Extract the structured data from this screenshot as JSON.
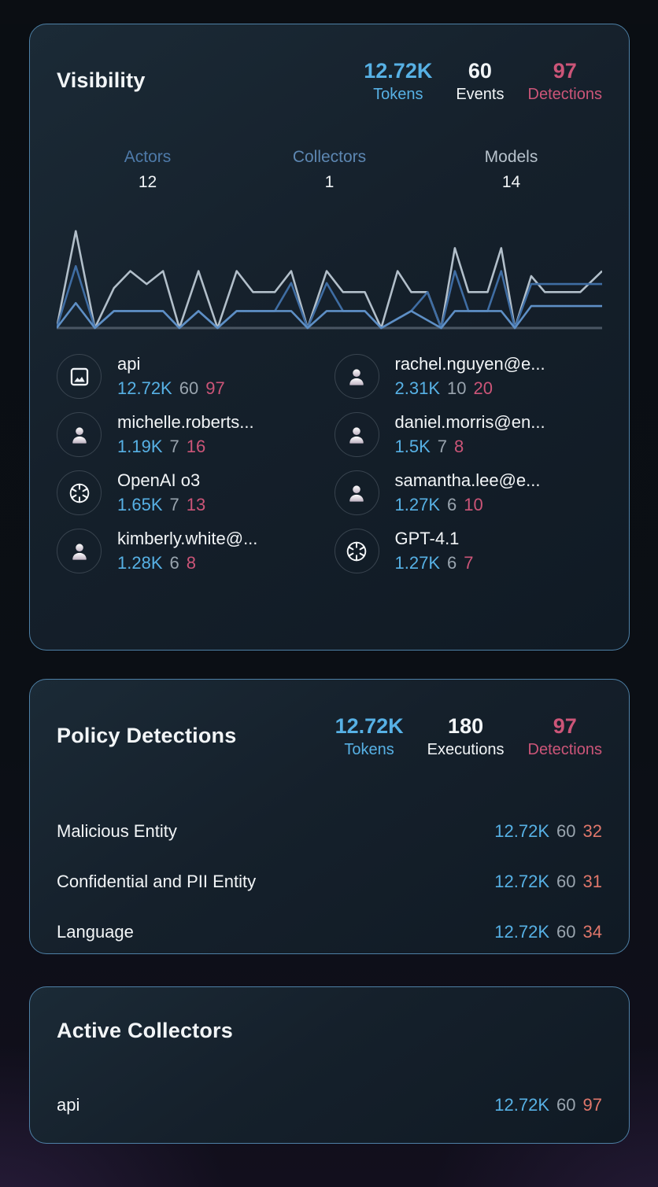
{
  "colors": {
    "accent-blue": "#57b1e5",
    "accent-pink": "#cc5578",
    "accent-salmon": "#e0776b",
    "muted-gray": "#99a4ae",
    "text-white": "#f2f5f7",
    "legend-actors": "#4e7aa9",
    "legend-collectors": "#5d87b2",
    "legend-models": "#b7c2cc",
    "card-border": "#4e80a6"
  },
  "visibility": {
    "title": "Visibility",
    "stats": [
      {
        "value": "12.72K",
        "label": "Tokens"
      },
      {
        "value": "60",
        "label": "Events"
      },
      {
        "value": "97",
        "label": "Detections"
      }
    ],
    "tabs": [
      {
        "label": "Actors",
        "count": "12"
      },
      {
        "label": "Collectors",
        "count": "1"
      },
      {
        "label": "Models",
        "count": "14"
      }
    ],
    "actors": [
      {
        "name": "api",
        "icon": "image-icon",
        "tokens": "12.72K",
        "events": "60",
        "detections": "97"
      },
      {
        "name": "rachel.nguyen@e...",
        "icon": "person-icon",
        "tokens": "2.31K",
        "events": "10",
        "detections": "20"
      },
      {
        "name": "michelle.roberts...",
        "icon": "person-icon",
        "tokens": "1.19K",
        "events": "7",
        "detections": "16"
      },
      {
        "name": "daniel.morris@en...",
        "icon": "person-icon",
        "tokens": "1.5K",
        "events": "7",
        "detections": "8"
      },
      {
        "name": "OpenAI o3",
        "icon": "openai-logo-icon",
        "tokens": "1.65K",
        "events": "7",
        "detections": "13"
      },
      {
        "name": "samantha.lee@e...",
        "icon": "person-icon",
        "tokens": "1.27K",
        "events": "6",
        "detections": "10"
      },
      {
        "name": "kimberly.white@...",
        "icon": "person-icon",
        "tokens": "1.28K",
        "events": "6",
        "detections": "8"
      },
      {
        "name": "GPT-4.1",
        "icon": "openai-logo-icon",
        "tokens": "1.27K",
        "events": "6",
        "detections": "7"
      }
    ]
  },
  "chart_data": {
    "type": "line",
    "title": "",
    "xlabel": "",
    "ylabel": "",
    "ylim": [
      0,
      100
    ],
    "grid": false,
    "axes_labeled": false,
    "note": "Unlabeled sparkline; x is 0-100 across the card, values are relative heights 0-100 estimated from pixels. Series colors match the Actors / Collectors / Models legend.",
    "series": [
      {
        "name": "Models",
        "color": "#b2bfca",
        "x": [
          0,
          3.5,
          7,
          10.5,
          13.5,
          16.5,
          19.5,
          22.5,
          26,
          29.5,
          33,
          36,
          40,
          43,
          46,
          49.5,
          52.5,
          56.5,
          59.5,
          62.5,
          65,
          68,
          70.5,
          73,
          75.5,
          79,
          81.5,
          84,
          87,
          89.5,
          93,
          96,
          100
        ],
        "values": [
          0,
          97,
          0,
          40,
          57,
          44,
          57,
          0,
          57,
          0,
          57,
          36,
          36,
          57,
          0,
          57,
          36,
          36,
          0,
          57,
          36,
          36,
          0,
          80,
          36,
          36,
          80,
          0,
          52,
          36,
          36,
          36,
          57
        ]
      },
      {
        "name": "Actors",
        "color": "#3f6da3",
        "x": [
          0,
          3.5,
          7,
          10.5,
          19.5,
          22.5,
          26,
          29.5,
          33,
          40,
          43,
          46,
          49.5,
          52.5,
          56.5,
          59.5,
          65,
          68,
          70.5,
          73,
          75.5,
          79,
          81.5,
          84,
          87,
          93,
          100
        ],
        "values": [
          0,
          62,
          0,
          17,
          17,
          0,
          17,
          0,
          17,
          17,
          45,
          0,
          45,
          17,
          17,
          0,
          17,
          36,
          0,
          57,
          17,
          17,
          57,
          0,
          44,
          44,
          44
        ]
      },
      {
        "name": "Collectors",
        "color": "#5e8fc5",
        "x": [
          0,
          3.5,
          7,
          10.5,
          19.5,
          22.5,
          26,
          29.5,
          33,
          43,
          46,
          49.5,
          56.5,
          59.5,
          65,
          70.5,
          73,
          81.5,
          84,
          87,
          100
        ],
        "values": [
          0,
          25,
          0,
          17,
          17,
          0,
          17,
          0,
          17,
          17,
          0,
          17,
          17,
          0,
          17,
          0,
          17,
          17,
          0,
          22,
          22
        ]
      }
    ]
  },
  "policy_detections": {
    "title": "Policy Detections",
    "stats": [
      {
        "value": "12.72K",
        "label": "Tokens"
      },
      {
        "value": "180",
        "label": "Executions"
      },
      {
        "value": "97",
        "label": "Detections"
      }
    ],
    "rows": [
      {
        "name": "Malicious Entity",
        "tokens": "12.72K",
        "events": "60",
        "detections": "32"
      },
      {
        "name": "Confidential and PII Entity",
        "tokens": "12.72K",
        "events": "60",
        "detections": "31"
      },
      {
        "name": "Language",
        "tokens": "12.72K",
        "events": "60",
        "detections": "34"
      }
    ]
  },
  "active_collectors": {
    "title": "Active Collectors",
    "rows": [
      {
        "name": "api",
        "tokens": "12.72K",
        "events": "60",
        "detections": "97"
      }
    ]
  }
}
